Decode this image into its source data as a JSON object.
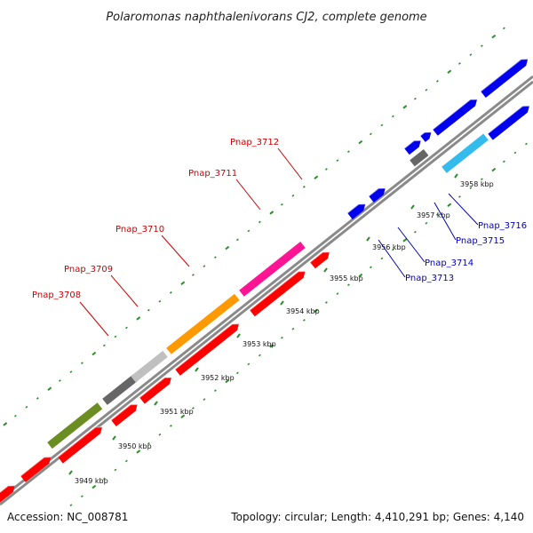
{
  "title": "Polaromonas naphthalenivorans CJ2, complete genome",
  "footer": {
    "accession": "Accession: NC_008781",
    "topology": "Topology: circular; Length: 4,410,291 bp; Genes: 4,140"
  },
  "colors": {
    "backbone": "#888888",
    "tick": "#2e8b2e",
    "label_red": "#cc0000",
    "label_blue": "#0000bb"
  },
  "ticks": [
    {
      "label": "3949 kbp"
    },
    {
      "label": "3950 kbp"
    },
    {
      "label": "3951 kbp"
    },
    {
      "label": "3952 kbp"
    },
    {
      "label": "3953 kbp"
    },
    {
      "label": "3954 kbp"
    },
    {
      "label": "3955 kbp"
    },
    {
      "label": "3956 kbp"
    },
    {
      "label": "3957 kbp"
    },
    {
      "label": "3958 kbp"
    }
  ],
  "gene_labels": [
    {
      "name": "Pnap_3708",
      "color": "#cc0000"
    },
    {
      "name": "Pnap_3709",
      "color": "#cc0000"
    },
    {
      "name": "Pnap_3710",
      "color": "#cc0000"
    },
    {
      "name": "Pnap_3711",
      "color": "#cc0000"
    },
    {
      "name": "Pnap_3712",
      "color": "#cc0000"
    },
    {
      "name": "Pnap_3713",
      "color": "#0000bb"
    },
    {
      "name": "Pnap_3714",
      "color": "#0000bb"
    },
    {
      "name": "Pnap_3715",
      "color": "#0000bb"
    },
    {
      "name": "Pnap_3716",
      "color": "#0000bb"
    }
  ],
  "gene_colors": {
    "red": "#ff0000",
    "olive": "#6b8e23",
    "darkgray": "#666666",
    "lightgray": "#c0c0c0",
    "orange": "#ff9900",
    "pink": "#ff1493",
    "blue": "#0000ee",
    "cyan": "#33bbee"
  }
}
